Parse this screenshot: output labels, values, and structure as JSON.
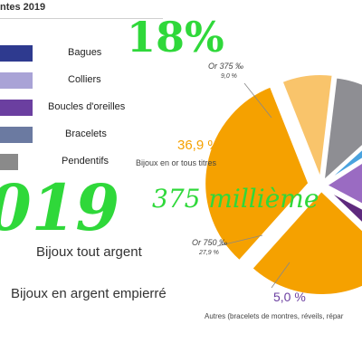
{
  "header": {
    "title": "ntes 2019"
  },
  "overlay": {
    "big_percent": "18%",
    "big_year": "019",
    "millieme": "375 millième"
  },
  "captions": {
    "silver": "Bijoux tout argent",
    "silver_stone": "Bijoux en argent empierré"
  },
  "chart_data": [
    {
      "type": "bar",
      "categories": [
        "Bagues",
        "Colliers",
        "Boucles d'oreilles",
        "Bracelets",
        "Pendentifs"
      ],
      "colors": [
        "#2e3a8f",
        "#a9a3d6",
        "#6b3fa0",
        "#6b7aa1",
        "#8a8a8a"
      ]
    },
    {
      "type": "pie",
      "slices": [
        {
          "label": "Or 375 ‰",
          "value": 9.0,
          "value_text": "9,0 %",
          "color": "#f9c46b"
        },
        {
          "label": "",
          "value": 13.0,
          "value_text": "",
          "color": "#8e8e93"
        },
        {
          "label": "",
          "value": 3.0,
          "value_text": "",
          "color": "#4aa3df"
        },
        {
          "label": "",
          "value": 19.2,
          "value_text": "",
          "color": "#9a6bc2"
        },
        {
          "label": "Autres (bracelets de montres, réveils, répar",
          "value": 5.0,
          "value_text": "5,0 %",
          "color": "#5e2a7e"
        },
        {
          "label": "Or 750 ‰",
          "value": 27.9,
          "value_text": "27,9 %",
          "color": "#f5a100"
        },
        {
          "label": "Bijoux en or tous titres",
          "value": 36.9,
          "value_text": "36,9 %",
          "color": "#f5a100"
        }
      ]
    }
  ]
}
